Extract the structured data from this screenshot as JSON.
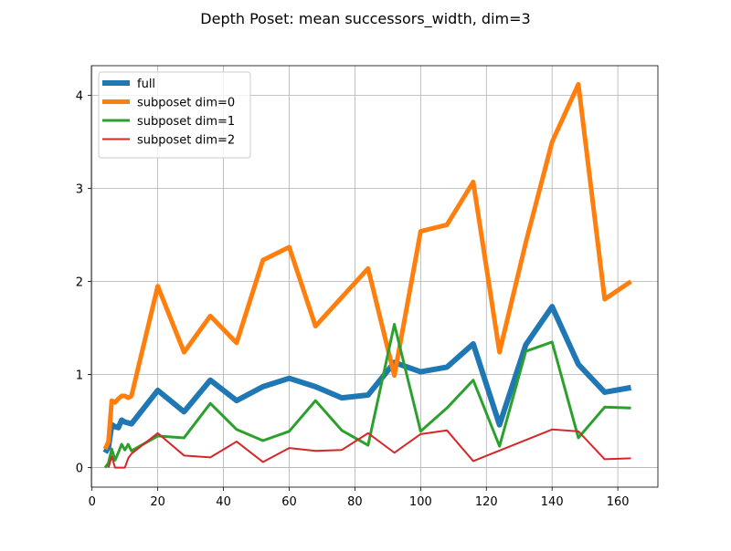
{
  "chart_data": {
    "type": "line",
    "title": "Depth Poset: mean successors_width, dim=3",
    "xlabel": "",
    "ylabel": "",
    "xlim": [
      -0.2,
      172.2
    ],
    "ylim": [
      -0.21,
      4.32
    ],
    "xticks": [
      0,
      20,
      40,
      60,
      80,
      100,
      120,
      140,
      160
    ],
    "yticks": [
      0,
      1,
      2,
      3,
      4
    ],
    "grid": true,
    "legend_position": "upper-left",
    "series": [
      {
        "name": "full",
        "color": "#1f77b4",
        "width": 6,
        "x": [
          4,
          5,
          6,
          7,
          8,
          9,
          10,
          11,
          12,
          20,
          28,
          36,
          44,
          52,
          60,
          68,
          76,
          84,
          92,
          100,
          108,
          116,
          124,
          132,
          140,
          148,
          156,
          164
        ],
        "y": [
          0.16,
          0.22,
          0.46,
          0.44,
          0.43,
          0.51,
          0.49,
          0.48,
          0.47,
          0.83,
          0.6,
          0.94,
          0.72,
          0.87,
          0.96,
          0.87,
          0.75,
          0.78,
          1.13,
          1.03,
          1.08,
          1.33,
          0.46,
          1.32,
          1.73,
          1.11,
          0.81,
          0.86
        ]
      },
      {
        "name": "subposet dim=0",
        "color": "#ff7f0e",
        "width": 5,
        "x": [
          4,
          5,
          6,
          7,
          8,
          9,
          10,
          11,
          12,
          20,
          28,
          36,
          44,
          52,
          60,
          68,
          76,
          84,
          92,
          100,
          108,
          116,
          124,
          132,
          140,
          148,
          156,
          164
        ],
        "y": [
          0.2,
          0.28,
          0.72,
          0.7,
          0.74,
          0.77,
          0.77,
          0.75,
          0.77,
          1.95,
          1.24,
          1.63,
          1.34,
          2.23,
          2.37,
          1.52,
          1.83,
          2.14,
          0.99,
          2.54,
          2.61,
          3.07,
          1.24,
          2.42,
          3.5,
          4.12,
          1.81,
          2.0
        ]
      },
      {
        "name": "subposet dim=1",
        "color": "#2ca02c",
        "width": 3,
        "x": [
          4,
          5,
          6,
          7,
          8,
          9,
          10,
          11,
          12,
          20,
          28,
          36,
          44,
          52,
          60,
          68,
          76,
          84,
          92,
          100,
          108,
          116,
          124,
          132,
          140,
          148,
          156,
          164
        ],
        "y": [
          0.0,
          0.05,
          0.2,
          0.08,
          0.16,
          0.25,
          0.19,
          0.25,
          0.18,
          0.34,
          0.32,
          0.69,
          0.41,
          0.29,
          0.39,
          0.72,
          0.4,
          0.24,
          1.54,
          0.39,
          0.64,
          0.94,
          0.23,
          1.25,
          1.35,
          0.32,
          0.65,
          0.64
        ]
      },
      {
        "name": "subposet dim=2",
        "color": "#d62728",
        "width": 2,
        "x": [
          5,
          6,
          7,
          8,
          9,
          10,
          11,
          12,
          20,
          28,
          36,
          44,
          52,
          60,
          68,
          76,
          84,
          92,
          100,
          108,
          116,
          140,
          148,
          156,
          164
        ],
        "y": [
          0.0,
          0.12,
          0.0,
          0.0,
          0.0,
          0.0,
          0.1,
          0.15,
          0.37,
          0.13,
          0.11,
          0.28,
          0.06,
          0.21,
          0.18,
          0.19,
          0.37,
          0.16,
          0.36,
          0.4,
          0.07,
          0.41,
          0.39,
          0.09,
          0.1
        ]
      }
    ]
  }
}
